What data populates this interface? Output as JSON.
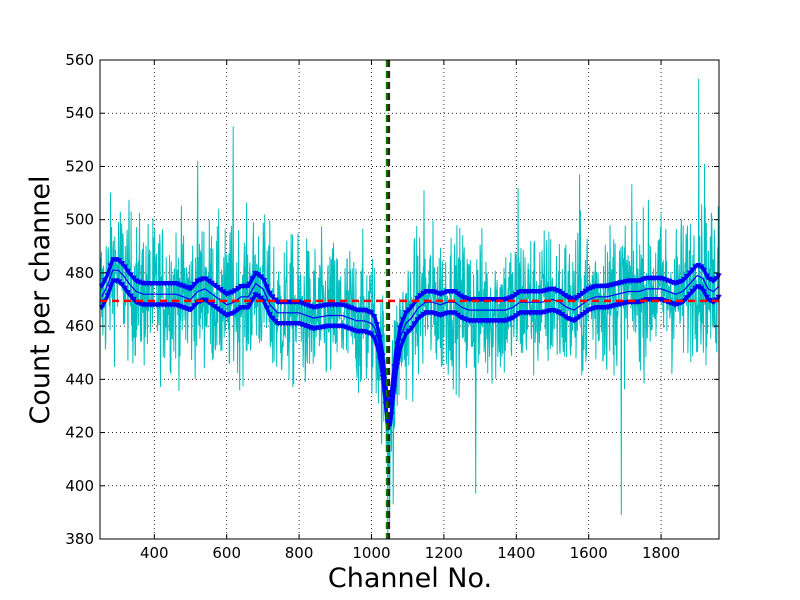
{
  "chart_data": {
    "type": "line",
    "title": "",
    "xlabel": "Channel No.",
    "ylabel": "Count per channel",
    "xlim": [
      250,
      1960
    ],
    "ylim": [
      380,
      560
    ],
    "grid": true,
    "x_ticks": [
      400,
      600,
      800,
      1000,
      1200,
      1400,
      1600,
      1800
    ],
    "y_ticks": [
      380,
      400,
      420,
      440,
      460,
      480,
      500,
      520,
      540,
      560
    ],
    "x_tick_labels": [
      "400",
      "600",
      "800",
      "1000",
      "1200",
      "1400",
      "1600",
      "1800"
    ],
    "y_tick_labels": [
      "380",
      "400",
      "420",
      "440",
      "460",
      "480",
      "500",
      "520",
      "540",
      "560"
    ],
    "baseline_y": 469.5,
    "dip_channels": [
      1043,
      1048
    ],
    "colors": {
      "raw": "#00bfbf",
      "smoothed": "#0000ff",
      "baseline": "#ff0000",
      "marker_a": "#008000",
      "marker_b": "#2b2b00"
    },
    "smoothed_points": [
      {
        "x": 255,
        "y": 471
      },
      {
        "x": 270,
        "y": 475
      },
      {
        "x": 285,
        "y": 481
      },
      {
        "x": 300,
        "y": 481
      },
      {
        "x": 315,
        "y": 479
      },
      {
        "x": 330,
        "y": 476
      },
      {
        "x": 350,
        "y": 473
      },
      {
        "x": 370,
        "y": 472
      },
      {
        "x": 400,
        "y": 472
      },
      {
        "x": 430,
        "y": 472
      },
      {
        "x": 460,
        "y": 472
      },
      {
        "x": 480,
        "y": 471
      },
      {
        "x": 500,
        "y": 470
      },
      {
        "x": 520,
        "y": 473
      },
      {
        "x": 540,
        "y": 474
      },
      {
        "x": 560,
        "y": 472
      },
      {
        "x": 580,
        "y": 470
      },
      {
        "x": 600,
        "y": 468
      },
      {
        "x": 620,
        "y": 469
      },
      {
        "x": 640,
        "y": 471
      },
      {
        "x": 660,
        "y": 471
      },
      {
        "x": 680,
        "y": 476
      },
      {
        "x": 700,
        "y": 474
      },
      {
        "x": 720,
        "y": 468
      },
      {
        "x": 740,
        "y": 465
      },
      {
        "x": 760,
        "y": 465
      },
      {
        "x": 800,
        "y": 465
      },
      {
        "x": 840,
        "y": 463
      },
      {
        "x": 880,
        "y": 464
      },
      {
        "x": 920,
        "y": 464
      },
      {
        "x": 960,
        "y": 462
      },
      {
        "x": 980,
        "y": 462
      },
      {
        "x": 1000,
        "y": 461
      },
      {
        "x": 1010,
        "y": 459
      },
      {
        "x": 1020,
        "y": 454
      },
      {
        "x": 1030,
        "y": 446
      },
      {
        "x": 1038,
        "y": 436
      },
      {
        "x": 1045,
        "y": 426
      },
      {
        "x": 1052,
        "y": 427
      },
      {
        "x": 1060,
        "y": 437
      },
      {
        "x": 1068,
        "y": 447
      },
      {
        "x": 1080,
        "y": 456
      },
      {
        "x": 1095,
        "y": 461
      },
      {
        "x": 1110,
        "y": 463
      },
      {
        "x": 1130,
        "y": 467
      },
      {
        "x": 1150,
        "y": 469
      },
      {
        "x": 1170,
        "y": 469
      },
      {
        "x": 1190,
        "y": 468
      },
      {
        "x": 1210,
        "y": 469
      },
      {
        "x": 1230,
        "y": 469
      },
      {
        "x": 1250,
        "y": 467
      },
      {
        "x": 1270,
        "y": 466
      },
      {
        "x": 1300,
        "y": 466
      },
      {
        "x": 1340,
        "y": 466
      },
      {
        "x": 1370,
        "y": 466
      },
      {
        "x": 1390,
        "y": 467
      },
      {
        "x": 1410,
        "y": 469
      },
      {
        "x": 1440,
        "y": 469
      },
      {
        "x": 1470,
        "y": 469
      },
      {
        "x": 1500,
        "y": 470
      },
      {
        "x": 1520,
        "y": 469
      },
      {
        "x": 1540,
        "y": 467
      },
      {
        "x": 1560,
        "y": 466
      },
      {
        "x": 1580,
        "y": 468
      },
      {
        "x": 1600,
        "y": 470
      },
      {
        "x": 1620,
        "y": 471
      },
      {
        "x": 1650,
        "y": 471
      },
      {
        "x": 1680,
        "y": 472
      },
      {
        "x": 1710,
        "y": 473
      },
      {
        "x": 1740,
        "y": 473
      },
      {
        "x": 1760,
        "y": 474
      },
      {
        "x": 1780,
        "y": 474
      },
      {
        "x": 1800,
        "y": 474
      },
      {
        "x": 1820,
        "y": 473
      },
      {
        "x": 1840,
        "y": 472
      },
      {
        "x": 1860,
        "y": 473
      },
      {
        "x": 1880,
        "y": 476
      },
      {
        "x": 1900,
        "y": 479
      },
      {
        "x": 1915,
        "y": 478
      },
      {
        "x": 1930,
        "y": 474
      },
      {
        "x": 1945,
        "y": 473
      },
      {
        "x": 1960,
        "y": 475
      }
    ],
    "raw_band_y": 30,
    "raw_noise_amplitude": 14,
    "raw_spikes": [
      {
        "x": 618,
        "y": 535
      },
      {
        "x": 1904,
        "y": 553
      },
      {
        "x": 1690,
        "y": 389
      },
      {
        "x": 1288,
        "y": 397
      },
      {
        "x": 1045,
        "y": 380
      },
      {
        "x": 1060,
        "y": 393
      },
      {
        "x": 1050,
        "y": 386
      },
      {
        "x": 1575,
        "y": 517
      },
      {
        "x": 1405,
        "y": 512
      },
      {
        "x": 520,
        "y": 522
      },
      {
        "x": 1145,
        "y": 511
      },
      {
        "x": 1920,
        "y": 521
      },
      {
        "x": 1940,
        "y": 501
      },
      {
        "x": 1958,
        "y": 505
      }
    ]
  }
}
